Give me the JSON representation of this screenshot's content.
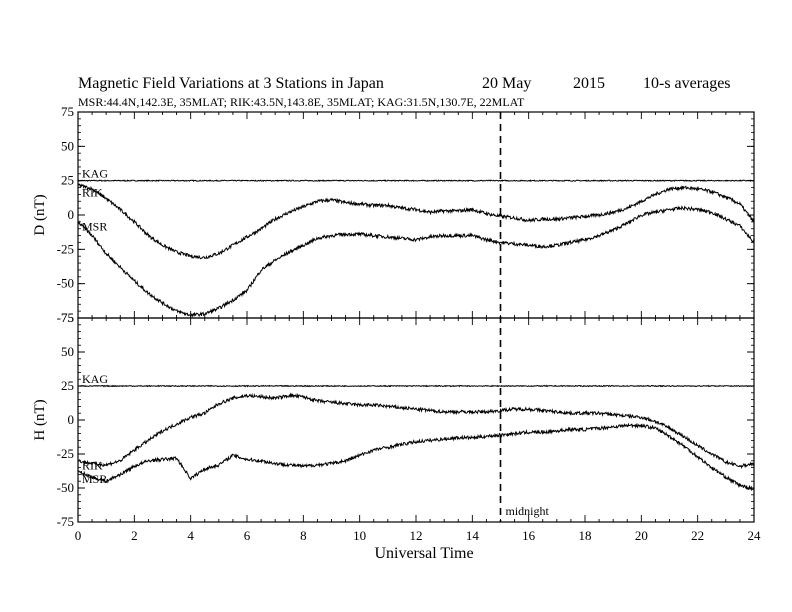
{
  "chart_data": {
    "type": "line",
    "title": "Magnetic Field Variations at 3 Stations in Japan",
    "title_date": "20 May",
    "title_year": "2015",
    "title_note": "10-s averages",
    "subtitle": "MSR:44.4N,142.3E, 35MLAT;   RIK:43.5N,143.8E, 35MLAT;   KAG:31.5N,130.7E, 22MLAT",
    "xlabel": "Universal Time",
    "xlim": [
      0,
      24
    ],
    "xticks": [
      "0",
      "2",
      "4",
      "6",
      "8",
      "10",
      "12",
      "14",
      "16",
      "18",
      "20",
      "22",
      "24"
    ],
    "grid": false,
    "annotation": {
      "x": 15,
      "label": "midnight",
      "style": "dashed vertical line"
    },
    "panels": [
      {
        "ylabel": "D (nT)",
        "ylim": [
          -75,
          75
        ],
        "yticks": [
          "75",
          "50",
          "25",
          "0",
          "-25",
          "-50",
          "-75"
        ],
        "series": [
          {
            "name": "KAG",
            "x": [
              0,
              24
            ],
            "values": [
              25,
              25
            ]
          },
          {
            "name": "RIK",
            "x": [
              0,
              0.5,
              1,
              1.5,
              2,
              2.5,
              3,
              3.5,
              4,
              4.5,
              5,
              5.5,
              6,
              6.5,
              7,
              7.5,
              8,
              8.5,
              9,
              9.5,
              10,
              10.5,
              11,
              11.5,
              12,
              12.5,
              13,
              13.5,
              14,
              14.5,
              15,
              15.5,
              16,
              16.5,
              17,
              17.5,
              18,
              18.5,
              19,
              19.5,
              20,
              20.5,
              21,
              21.5,
              22,
              22.5,
              23,
              23.5,
              24
            ],
            "values": [
              22,
              19,
              12,
              4,
              -5,
              -15,
              -22,
              -27,
              -30,
              -31,
              -28,
              -22,
              -16,
              -10,
              -3,
              2,
              6,
              10,
              11,
              9,
              8,
              7,
              7,
              5,
              4,
              2,
              3,
              3,
              4,
              1,
              -1,
              -2,
              -4,
              -3,
              -3,
              -2,
              -1,
              0,
              2,
              5,
              10,
              15,
              19,
              20,
              19,
              17,
              13,
              8,
              -5
            ]
          },
          {
            "name": "MSR",
            "x": [
              0,
              0.5,
              1,
              1.5,
              2,
              2.5,
              3,
              3.5,
              4,
              4.5,
              5,
              5.5,
              6,
              6.5,
              7,
              7.5,
              8,
              8.5,
              9,
              9.5,
              10,
              10.5,
              11,
              11.5,
              12,
              12.5,
              13,
              13.5,
              14,
              14.5,
              15,
              15.5,
              16,
              16.5,
              17,
              17.5,
              18,
              18.5,
              19,
              19.5,
              20,
              20.5,
              21,
              21.5,
              22,
              22.5,
              23,
              23.5,
              24
            ],
            "values": [
              -5,
              -15,
              -28,
              -38,
              -48,
              -57,
              -64,
              -70,
              -73,
              -72,
              -68,
              -62,
              -55,
              -40,
              -33,
              -27,
              -22,
              -17,
              -15,
              -14,
              -14,
              -15,
              -16,
              -17,
              -18,
              -16,
              -15,
              -15,
              -15,
              -18,
              -20,
              -21,
              -22,
              -23,
              -22,
              -20,
              -18,
              -15,
              -11,
              -6,
              0,
              2,
              4,
              5,
              4,
              2,
              -3,
              -8,
              -20
            ]
          }
        ]
      },
      {
        "ylabel": "H (nT)",
        "ylim": [
          -75,
          75
        ],
        "yticks": [
          "75",
          "50",
          "25",
          "0",
          "-25",
          "-50",
          "-75"
        ],
        "series": [
          {
            "name": "KAG",
            "x": [
              0,
              24
            ],
            "values": [
              25,
              25
            ]
          },
          {
            "name": "RIK",
            "x": [
              0,
              0.5,
              1,
              1.5,
              2,
              2.5,
              3,
              3.5,
              4,
              4.5,
              5,
              5.5,
              6,
              6.5,
              7,
              7.5,
              8,
              8.5,
              9,
              9.5,
              10,
              10.5,
              11,
              11.5,
              12,
              12.5,
              13,
              13.5,
              14,
              14.5,
              15,
              15.5,
              16,
              16.5,
              17,
              17.5,
              18,
              18.5,
              19,
              19.5,
              20,
              20.5,
              21,
              21.5,
              22,
              22.5,
              23,
              23.5,
              24
            ],
            "values": [
              -30,
              -32,
              -33,
              -30,
              -22,
              -15,
              -8,
              -3,
              2,
              5,
              12,
              16,
              18,
              17,
              16,
              18,
              17,
              14,
              13,
              12,
              11,
              11,
              10,
              9,
              8,
              7,
              6,
              6,
              6,
              6,
              7,
              8,
              8,
              7,
              6,
              5,
              5,
              5,
              4,
              3,
              2,
              -1,
              -6,
              -12,
              -19,
              -25,
              -31,
              -34,
              -32
            ]
          },
          {
            "name": "MSR",
            "x": [
              0,
              0.5,
              1,
              1.5,
              2,
              2.5,
              3,
              3.5,
              4,
              4.5,
              5,
              5.5,
              6,
              6.5,
              7,
              7.5,
              8,
              8.5,
              9,
              9.5,
              10,
              10.5,
              11,
              11.5,
              12,
              12.5,
              13,
              13.5,
              14,
              14.5,
              15,
              15.5,
              16,
              16.5,
              17,
              17.5,
              18,
              18.5,
              19,
              19.5,
              20,
              20.5,
              21,
              21.5,
              22,
              22.5,
              23,
              23.5,
              24
            ],
            "values": [
              -38,
              -42,
              -45,
              -40,
              -34,
              -30,
              -29,
              -28,
              -43,
              -36,
              -33,
              -26,
              -29,
              -30,
              -32,
              -33,
              -34,
              -33,
              -32,
              -30,
              -26,
              -22,
              -20,
              -18,
              -16,
              -15,
              -14,
              -13,
              -13,
              -12,
              -11,
              -10,
              -9,
              -9,
              -8,
              -7,
              -7,
              -6,
              -5,
              -4,
              -4,
              -6,
              -12,
              -19,
              -27,
              -35,
              -42,
              -48,
              -51
            ]
          }
        ]
      }
    ]
  }
}
